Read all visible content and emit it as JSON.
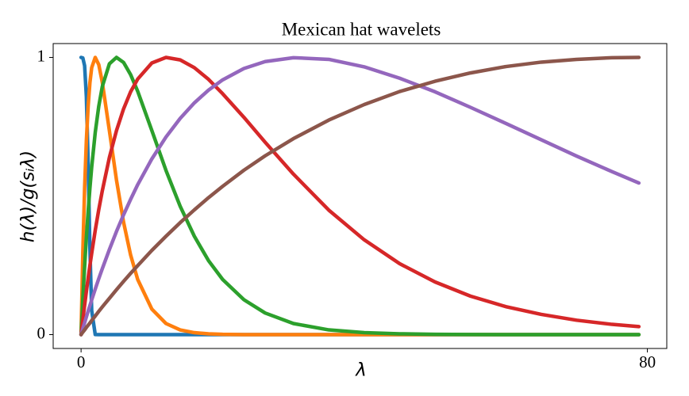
{
  "chart_data": {
    "type": "line",
    "title": "Mexican hat wavelets",
    "x_label": "λ",
    "y_label": "h(λ)/g(sᵢλ)",
    "x": [
      0,
      0.25,
      0.5,
      0.75,
      1,
      1.25,
      1.5,
      2,
      2.5,
      3,
      4,
      5,
      6,
      7,
      8,
      10,
      12,
      14,
      16,
      18,
      20,
      23,
      26,
      30,
      35,
      40,
      45,
      50,
      55,
      60,
      65,
      70,
      75,
      78.8
    ],
    "series": [
      {
        "color": "#1f77b4",
        "values": [
          1,
          0.998,
          0.97,
          0.858,
          0.618,
          0.308,
          0.087,
          0.0004,
          0,
          0,
          0,
          0,
          0,
          0,
          0,
          0,
          0,
          0,
          0,
          0,
          0,
          0,
          0,
          0,
          0,
          0,
          0,
          0,
          0,
          0,
          0,
          0,
          0,
          0
        ]
      },
      {
        "color": "#ff7f0e",
        "values": [
          0,
          0.3,
          0.529,
          0.701,
          0.824,
          0.909,
          0.963,
          1,
          0.974,
          0.91,
          0.736,
          0.558,
          0.406,
          0.287,
          0.199,
          0.092,
          0.04,
          0.017,
          0.007,
          0.003,
          0.001,
          0,
          0,
          0,
          0,
          0,
          0,
          0,
          0,
          0,
          0,
          0,
          0,
          0
        ]
      },
      {
        "color": "#2ca02c",
        "values": [
          0,
          0.129,
          0.246,
          0.351,
          0.445,
          0.529,
          0.604,
          0.729,
          0.824,
          0.895,
          0.977,
          1,
          0.982,
          0.938,
          0.878,
          0.736,
          0.592,
          0.463,
          0.355,
          0.267,
          0.199,
          0.126,
          0.078,
          0.04,
          0.017,
          0.007,
          0.003,
          0.001,
          0.0005,
          0,
          0,
          0,
          0,
          0
        ]
      },
      {
        "color": "#d62728",
        "values": [
          0,
          0.054,
          0.106,
          0.156,
          0.204,
          0.25,
          0.293,
          0.376,
          0.451,
          0.519,
          0.639,
          0.736,
          0.814,
          0.876,
          0.922,
          0.98,
          1.0,
          0.991,
          0.963,
          0.921,
          0.869,
          0.784,
          0.694,
          0.579,
          0.449,
          0.342,
          0.256,
          0.19,
          0.139,
          0.101,
          0.073,
          0.052,
          0.037,
          0.029
        ]
      },
      {
        "color": "#9467bd",
        "values": [
          0,
          0.022,
          0.043,
          0.064,
          0.085,
          0.105,
          0.125,
          0.164,
          0.202,
          0.238,
          0.307,
          0.372,
          0.432,
          0.488,
          0.541,
          0.634,
          0.713,
          0.78,
          0.836,
          0.882,
          0.919,
          0.96,
          0.985,
          0.999,
          0.993,
          0.966,
          0.925,
          0.876,
          0.82,
          0.762,
          0.703,
          0.644,
          0.588,
          0.547
        ]
      },
      {
        "color": "#8c564b",
        "values": [
          0,
          0.009,
          0.017,
          0.026,
          0.034,
          0.042,
          0.051,
          0.067,
          0.084,
          0.1,
          0.131,
          0.162,
          0.192,
          0.221,
          0.249,
          0.304,
          0.355,
          0.404,
          0.45,
          0.494,
          0.535,
          0.593,
          0.645,
          0.707,
          0.774,
          0.83,
          0.877,
          0.914,
          0.944,
          0.967,
          0.983,
          0.993,
          0.999,
          1
        ]
      }
    ],
    "xlim": [
      -3.94,
      82.74
    ],
    "ylim": [
      -0.05,
      1.05
    ],
    "xticks": [
      0,
      80
    ],
    "yticks": [
      0,
      1
    ]
  }
}
